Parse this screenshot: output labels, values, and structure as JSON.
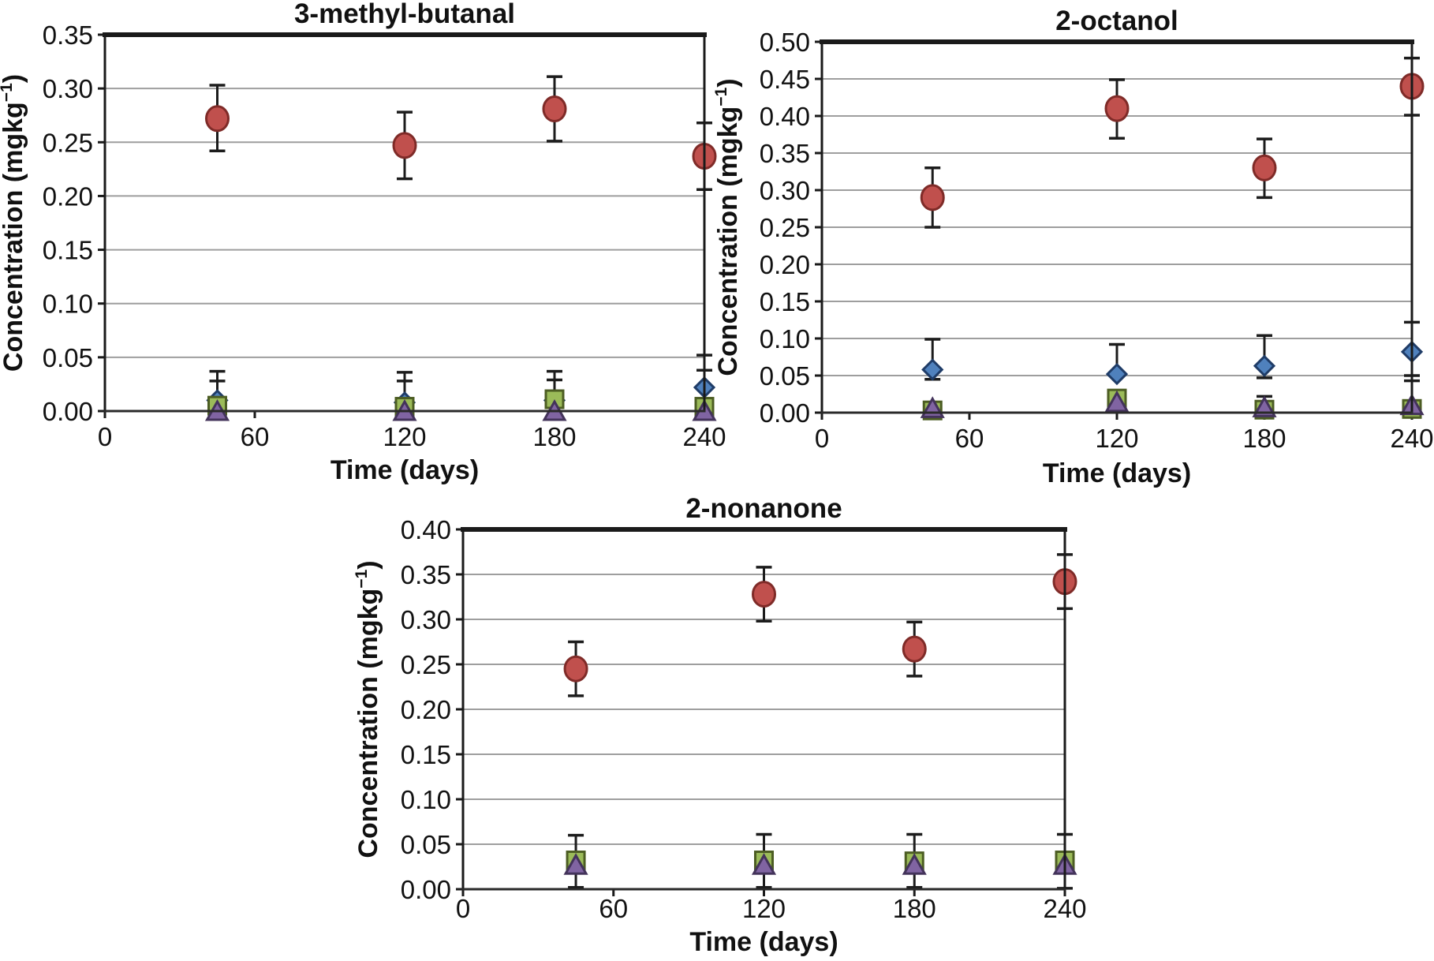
{
  "page": {
    "background": "#ffffff"
  },
  "chart_data": [
    {
      "type": "scatter",
      "title": "3-methyl-butanal",
      "xlabel": "Time (days)",
      "ylabel": {
        "base": "Concentration (mgkg",
        "sup": "−1",
        "close": ")"
      },
      "xlim": [
        0,
        240
      ],
      "xticks": [
        0,
        60,
        120,
        180,
        240
      ],
      "ylim": [
        0,
        0.35
      ],
      "ystep": 0.05,
      "grid": true,
      "legend": "none",
      "series": [
        {
          "name": "red-circles",
          "marker": "circle",
          "fill": "#c0504d",
          "line": "#7f2b28",
          "points": [
            {
              "x": 45,
              "y": 0.272,
              "lo": 0.242,
              "hi": 0.303
            },
            {
              "x": 120,
              "y": 0.247,
              "lo": 0.216,
              "hi": 0.278
            },
            {
              "x": 180,
              "y": 0.281,
              "lo": 0.251,
              "hi": 0.311
            },
            {
              "x": 240,
              "y": 0.237,
              "lo": 0.206,
              "hi": 0.268
            }
          ]
        },
        {
          "name": "blue-diamonds",
          "marker": "diamond",
          "fill": "#4f81bd",
          "line": "#1f3c67",
          "points": [
            {
              "x": 45,
              "y": 0.01,
              "hi": 0.028
            },
            {
              "x": 120,
              "y": 0.008,
              "hi": 0.028
            },
            {
              "x": 180,
              "y": 0.01,
              "hi": 0.029
            },
            {
              "x": 240,
              "y": 0.022,
              "hi": 0.052
            }
          ]
        },
        {
          "name": "green-squares",
          "marker": "square",
          "fill": "#9bbb59",
          "line": "#4c5d23",
          "points": [
            {
              "x": 45,
              "y": 0.005,
              "hi": 0.037
            },
            {
              "x": 120,
              "y": 0.004,
              "hi": 0.036
            },
            {
              "x": 180,
              "y": 0.011,
              "hi": 0.037
            },
            {
              "x": 240,
              "y": 0.004,
              "hi": 0.038
            }
          ]
        },
        {
          "name": "purple-triangles",
          "marker": "triangle",
          "fill": "#8064a2",
          "line": "#43335a",
          "points": [
            {
              "x": 45,
              "y": 0.0
            },
            {
              "x": 120,
              "y": 0.0
            },
            {
              "x": 180,
              "y": 0.0
            },
            {
              "x": 240,
              "y": 0.0
            }
          ]
        }
      ]
    },
    {
      "type": "scatter",
      "title": "2-octanol",
      "xlabel": "Time (days)",
      "ylabel": {
        "base": "Concentration (mgkg",
        "sup": "−1",
        "close": ")"
      },
      "xlim": [
        0,
        240
      ],
      "xticks": [
        0,
        60,
        120,
        180,
        240
      ],
      "ylim": [
        0,
        0.5
      ],
      "ystep": 0.05,
      "grid": true,
      "legend": "none",
      "series": [
        {
          "name": "red-circles",
          "marker": "circle",
          "fill": "#c0504d",
          "line": "#7f2b28",
          "points": [
            {
              "x": 45,
              "y": 0.29,
              "lo": 0.25,
              "hi": 0.33
            },
            {
              "x": 120,
              "y": 0.41,
              "lo": 0.37,
              "hi": 0.449
            },
            {
              "x": 180,
              "y": 0.33,
              "lo": 0.29,
              "hi": 0.369
            },
            {
              "x": 240,
              "y": 0.44,
              "lo": 0.401,
              "hi": 0.478
            }
          ]
        },
        {
          "name": "blue-diamonds",
          "marker": "diamond",
          "fill": "#4f81bd",
          "line": "#1f3c67",
          "points": [
            {
              "x": 45,
              "y": 0.058,
              "lo": 0.045,
              "hi": 0.099
            },
            {
              "x": 120,
              "y": 0.052,
              "hi": 0.092
            },
            {
              "x": 180,
              "y": 0.063,
              "lo": 0.047,
              "hi": 0.104
            },
            {
              "x": 240,
              "y": 0.082,
              "lo": 0.043,
              "hi": 0.122
            }
          ]
        },
        {
          "name": "green-squares",
          "marker": "square",
          "fill": "#9bbb59",
          "line": "#4c5d23",
          "points": [
            {
              "x": 45,
              "y": 0.003
            },
            {
              "x": 120,
              "y": 0.019
            },
            {
              "x": 180,
              "y": 0.004,
              "hi": 0.022
            },
            {
              "x": 240,
              "y": 0.005,
              "hi": 0.05
            }
          ]
        },
        {
          "name": "purple-triangles",
          "marker": "triangle",
          "fill": "#8064a2",
          "line": "#43335a",
          "points": [
            {
              "x": 45,
              "y": 0.006
            },
            {
              "x": 120,
              "y": 0.014
            },
            {
              "x": 180,
              "y": 0.007
            },
            {
              "x": 240,
              "y": 0.01
            }
          ]
        }
      ]
    },
    {
      "type": "scatter",
      "title": "2-nonanone",
      "xlabel": "Time (days)",
      "ylabel": {
        "base": "Concentration (mgkg",
        "sup": "−1",
        "close": ")"
      },
      "xlim": [
        0,
        240
      ],
      "xticks": [
        0,
        60,
        120,
        180,
        240
      ],
      "ylim": [
        0,
        0.4
      ],
      "ystep": 0.05,
      "grid": true,
      "legend": "none",
      "series": [
        {
          "name": "red-circles",
          "marker": "circle",
          "fill": "#c0504d",
          "line": "#7f2b28",
          "points": [
            {
              "x": 45,
              "y": 0.245,
              "lo": 0.215,
              "hi": 0.275
            },
            {
              "x": 120,
              "y": 0.328,
              "lo": 0.298,
              "hi": 0.358
            },
            {
              "x": 180,
              "y": 0.267,
              "lo": 0.237,
              "hi": 0.297
            },
            {
              "x": 240,
              "y": 0.342,
              "lo": 0.312,
              "hi": 0.372
            }
          ]
        },
        {
          "name": "green-squares",
          "marker": "square",
          "fill": "#9bbb59",
          "line": "#4c5d23",
          "points": [
            {
              "x": 45,
              "y": 0.032,
              "lo": 0.002,
              "hi": 0.06
            },
            {
              "x": 120,
              "y": 0.032,
              "lo": 0.002,
              "hi": 0.061
            },
            {
              "x": 180,
              "y": 0.031,
              "lo": 0.002,
              "hi": 0.061
            },
            {
              "x": 240,
              "y": 0.032,
              "lo": 0.001,
              "hi": 0.061
            }
          ]
        },
        {
          "name": "purple-triangles",
          "marker": "triangle",
          "fill": "#8064a2",
          "line": "#43335a",
          "points": [
            {
              "x": 45,
              "y": 0.027
            },
            {
              "x": 120,
              "y": 0.027
            },
            {
              "x": 180,
              "y": 0.027
            },
            {
              "x": 240,
              "y": 0.027
            }
          ]
        }
      ]
    }
  ]
}
